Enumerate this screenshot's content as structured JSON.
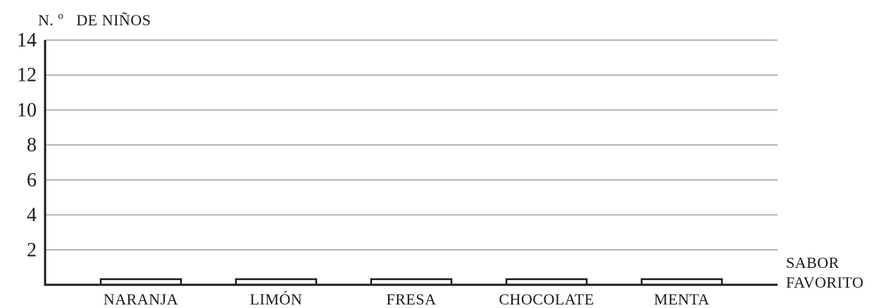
{
  "chart_data": {
    "type": "bar",
    "ylabel": "N.º DE NIÑOS",
    "ylabel_parts": {
      "prefix": "N.",
      "superscript": "o",
      "suffix": "DE NIÑOS"
    },
    "xlabel": "SABOR FAVORITO",
    "xlabel_lines": [
      "SABOR",
      "FAVORITO"
    ],
    "categories": [
      "NARANJA",
      "LIMÓN",
      "FRESA",
      "CHOCOLATE",
      "MENTA"
    ],
    "values": [
      0,
      0,
      0,
      0,
      0
    ],
    "ylim": [
      0,
      14
    ],
    "yticks": [
      2,
      4,
      6,
      8,
      10,
      12,
      14
    ],
    "grid": true,
    "colors": {
      "axis": "#1a1a1a",
      "grid": "#8a8a8a",
      "bar_fill": "#ffffff",
      "bar_stroke": "#1a1a1a"
    }
  }
}
